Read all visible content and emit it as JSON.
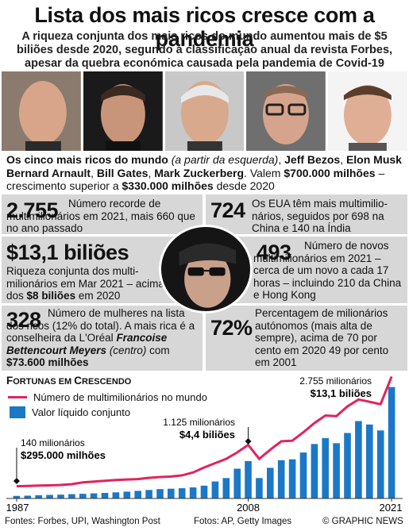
{
  "header": {
    "title": "Lista dos mais ricos cresce com a pandemia",
    "subtitle": "A riqueza conjunta dos mais ricos do mundo aumentou mais de $5 biliões desde 2020, segundo a classificação anual da revista Forbes, apesar da quebra económica causada pela pandemia de Covid-19"
  },
  "caption": {
    "lead": "Os cinco mais ricos do mundo",
    "note": "(a partir da esquerda)",
    "names": [
      "Jeff Bezos",
      "Elon Musk",
      "Bernard Arnault",
      "Bill Gates",
      "Mark Zuckerberg"
    ],
    "value_prefix": "Valem",
    "value": "$700.000 milhões",
    "growth_prefix": "crescimento superior a",
    "growth": "$330.000 milhões",
    "growth_suffix": "desde 2020"
  },
  "facts": {
    "f1": {
      "number": "2.755",
      "text": "Número recorde de multimilionários em 2021, mais 660 que no ano passado"
    },
    "f2": {
      "number": "724",
      "text": "Os EUA têm mais multimilio-nários, seguidos por 698 na China e 140 na Índia"
    },
    "f3": {
      "number": "$13,1 biliões",
      "text_a": "Riqueza conjunta dos multi-milionários em Mar 2021 – acima dos",
      "text_b": "$8 biliões",
      "text_c": "em 2020"
    },
    "f4": {
      "number": "493",
      "text": "Número de novos multimilionários em 2021 – cerca de um novo a cada 17 horas – incluindo 210 da China e Hong Kong"
    },
    "f5": {
      "number": "328",
      "text_a": "Número de mulheres na lista dos ricos (12% do total). A mais rica é a conselheira da L'Oréal",
      "name": "Francoise Bettencourt Meyers",
      "note": "(centro)",
      "text_b": "com",
      "value": "$73.600 milhões"
    },
    "f6": {
      "number": "72%",
      "text": "Percentagem de milionários autónomos (mais alta de sempre), acima de 70 por cento em 2020 49 por cento em 2001"
    }
  },
  "chart": {
    "title_big": "F",
    "title_rest": "ORTUNAS EM ",
    "title_big2": "C",
    "title_rest2": "RESCENDO",
    "legend_line": "Número de multimilionários no mundo",
    "legend_bar": "Valor líquido conjunto",
    "annotations": {
      "a1987_top": "140 milionários",
      "a1987_bottom": "$295.000 milhões",
      "a2008_top": "1.125 milionários",
      "a2008_bottom": "$4,4 biliões",
      "a2021_top": "2.755 milionários",
      "a2021_bottom": "$13,1 biliões"
    }
  },
  "chart_data": {
    "type": "bar",
    "x_ticks": [
      "1987",
      "2008",
      "2021"
    ],
    "years": [
      1987,
      1988,
      1989,
      1990,
      1991,
      1992,
      1993,
      1994,
      1995,
      1996,
      1997,
      1998,
      1999,
      2000,
      2001,
      2002,
      2003,
      2004,
      2005,
      2006,
      2007,
      2008,
      2009,
      2010,
      2011,
      2012,
      2013,
      2014,
      2015,
      2016,
      2017,
      2018,
      2019,
      2020,
      2021
    ],
    "series": [
      {
        "name": "Valor líquido conjunto",
        "unit": "biliões $",
        "values": [
          0.295,
          0.33,
          0.38,
          0.42,
          0.45,
          0.5,
          0.55,
          0.6,
          0.65,
          0.72,
          0.8,
          0.9,
          1.0,
          1.1,
          1.15,
          1.2,
          1.3,
          1.5,
          2.0,
          2.4,
          3.5,
          4.4,
          2.4,
          3.6,
          4.5,
          4.6,
          5.4,
          6.4,
          7.1,
          6.5,
          7.7,
          9.1,
          8.7,
          8.0,
          13.1
        ]
      },
      {
        "name": "Número de multimilionários no mundo",
        "unit": "milionários",
        "values": [
          140,
          145,
          157,
          160,
          170,
          190,
          230,
          250,
          270,
          290,
          300,
          310,
          340,
          360,
          370,
          400,
          470,
          587,
          690,
          793,
          946,
          1125,
          793,
          1011,
          1210,
          1226,
          1426,
          1645,
          1826,
          1810,
          2043,
          2208,
          2153,
          2095,
          2755
        ]
      }
    ],
    "ylim_value": [
      0,
      14
    ],
    "ylim_count": [
      0,
      2800
    ],
    "legend_position": "top-left"
  },
  "footer": {
    "sources": "Fontes: Forbes, UPI, Washington Post",
    "photos": "Fotos: AP, Getty Images",
    "credit": "© GRAPHIC NEWS"
  },
  "colors": {
    "line": "#e0245e",
    "bar": "#1b78c6",
    "box": "#d7d7d7"
  }
}
